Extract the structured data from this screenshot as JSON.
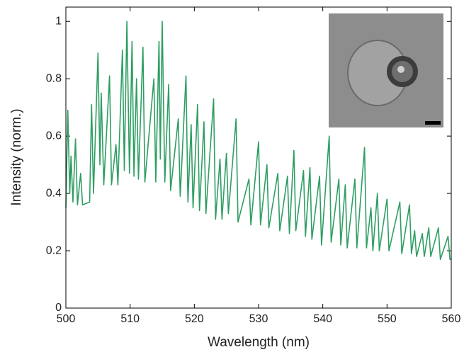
{
  "chart_data": {
    "type": "line",
    "xlabel": "Wavelength (nm)",
    "ylabel": "Intensity (norm.)",
    "xlim": [
      500,
      560
    ],
    "xticks": [
      500,
      510,
      520,
      530,
      540,
      550,
      560
    ],
    "ylim": [
      0,
      1.05
    ],
    "yticks": [
      0,
      0.2,
      0.4,
      0.6,
      0.8,
      1
    ],
    "grid": false,
    "x": [
      500.0,
      500.3,
      500.6,
      500.8,
      501.1,
      501.5,
      501.8,
      502.3,
      502.6,
      503.7,
      504.0,
      504.3,
      505.0,
      505.3,
      505.5,
      505.9,
      506.8,
      507.1,
      507.8,
      508.1,
      508.8,
      509.1,
      509.5,
      509.9,
      510.3,
      510.6,
      511.0,
      511.3,
      512.0,
      512.3,
      513.7,
      514.0,
      514.5,
      514.7,
      515.0,
      515.4,
      516.0,
      516.3,
      517.5,
      517.8,
      518.7,
      519.0,
      519.5,
      519.8,
      520.5,
      520.8,
      521.5,
      521.8,
      523.0,
      523.3,
      524.0,
      524.3,
      525.0,
      525.3,
      526.5,
      526.8,
      528.5,
      528.8,
      530.0,
      530.3,
      531.3,
      531.6,
      533.0,
      533.3,
      534.5,
      534.8,
      535.5,
      535.8,
      537.0,
      537.3,
      538.0,
      538.3,
      539.5,
      539.8,
      541.0,
      541.3,
      542.5,
      542.8,
      543.5,
      543.8,
      545.0,
      545.3,
      546.5,
      546.8,
      547.5,
      547.8,
      548.5,
      548.8,
      550.0,
      550.3,
      552.0,
      552.3,
      553.5,
      553.8,
      554.3,
      554.6,
      555.5,
      555.8,
      556.5,
      556.8,
      558.0,
      558.3,
      559.5,
      559.8,
      560.0
    ],
    "series": [
      {
        "color": "#2e9e62",
        "values": [
          0.35,
          0.69,
          0.4,
          0.53,
          0.37,
          0.59,
          0.36,
          0.47,
          0.36,
          0.37,
          0.71,
          0.4,
          0.89,
          0.5,
          0.75,
          0.43,
          0.81,
          0.43,
          0.57,
          0.43,
          0.9,
          0.48,
          1.0,
          0.47,
          0.93,
          0.46,
          0.8,
          0.45,
          0.91,
          0.44,
          0.8,
          0.44,
          0.93,
          0.52,
          1.0,
          0.44,
          0.78,
          0.41,
          0.66,
          0.39,
          0.81,
          0.37,
          0.64,
          0.35,
          0.71,
          0.34,
          0.65,
          0.33,
          0.73,
          0.31,
          0.52,
          0.31,
          0.54,
          0.33,
          0.66,
          0.3,
          0.45,
          0.29,
          0.58,
          0.29,
          0.5,
          0.28,
          0.47,
          0.27,
          0.46,
          0.26,
          0.55,
          0.27,
          0.48,
          0.25,
          0.49,
          0.24,
          0.46,
          0.22,
          0.6,
          0.23,
          0.45,
          0.22,
          0.43,
          0.21,
          0.45,
          0.21,
          0.56,
          0.21,
          0.35,
          0.2,
          0.4,
          0.2,
          0.38,
          0.2,
          0.37,
          0.19,
          0.36,
          0.19,
          0.27,
          0.18,
          0.26,
          0.18,
          0.28,
          0.18,
          0.28,
          0.17,
          0.25,
          0.17,
          0.17
        ]
      }
    ]
  }
}
